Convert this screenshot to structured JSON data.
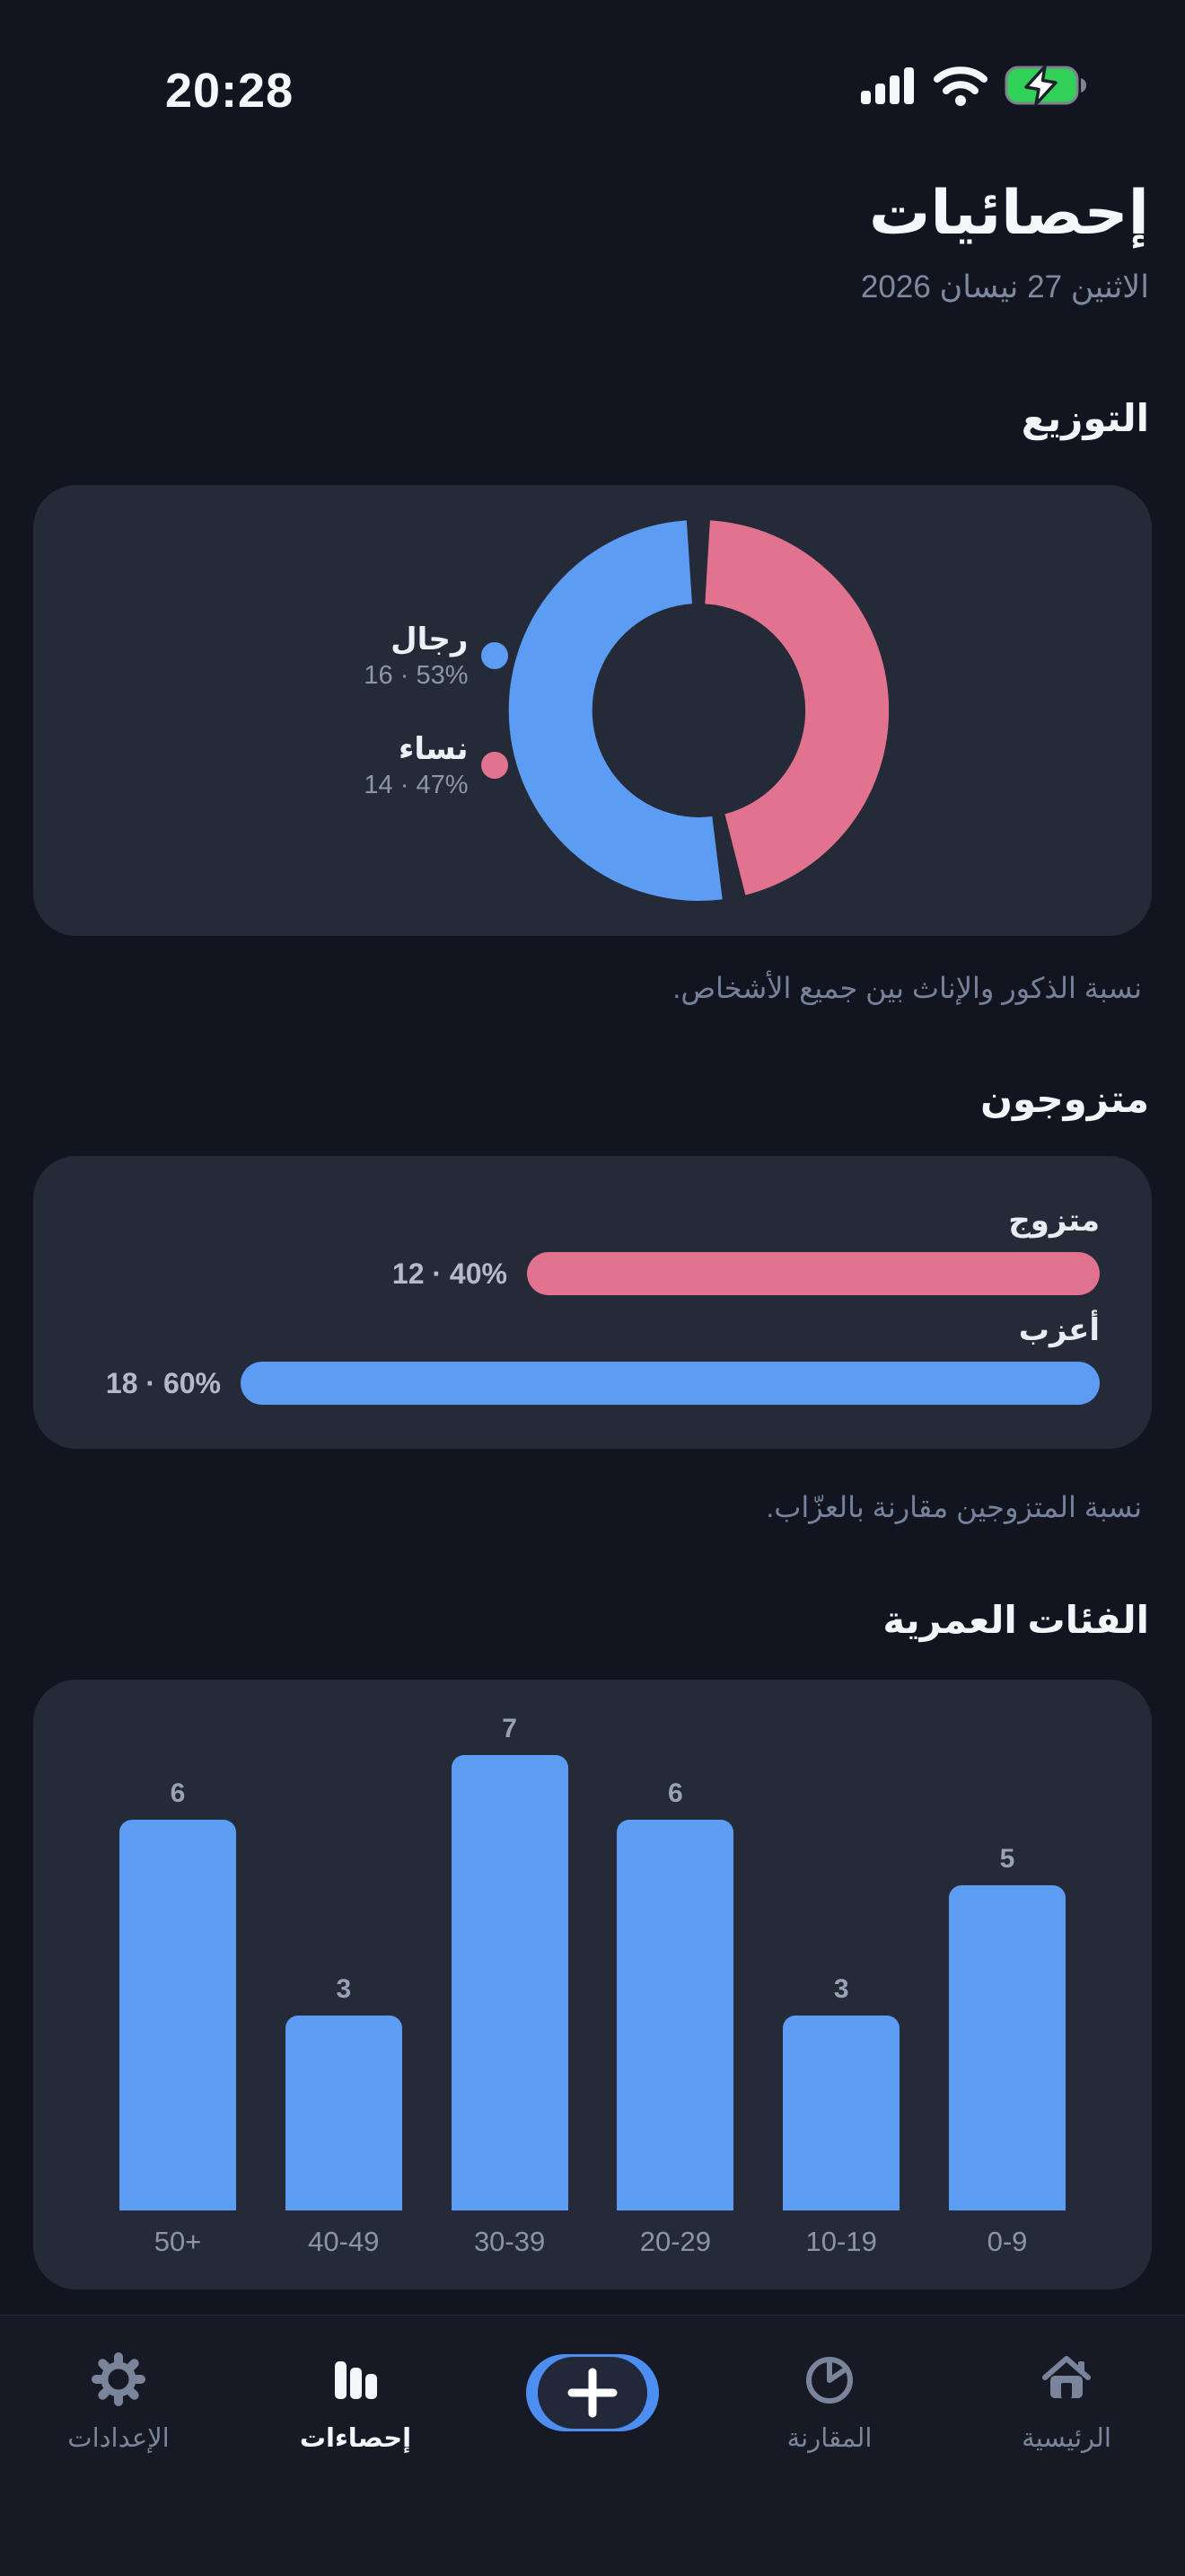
{
  "status_bar": {
    "time": "20:28",
    "icons": [
      "cellular-signal-icon",
      "wifi-icon",
      "battery-charging-icon"
    ],
    "battery_color": "#31D158"
  },
  "header": {
    "title": "إحصائيات",
    "date": "الاثنين 27 نيسان 2026"
  },
  "colors": {
    "blue": "#5D9CF3",
    "pink": "#E2738F",
    "card_bg": "#242A37",
    "page_bg": "#121520",
    "tabbar_bg": "#171A25"
  },
  "sections": {
    "distribution": {
      "title": "التوزيع",
      "caption": "نسبة الذكور والإناث بين جميع الأشخاص.",
      "legend": [
        {
          "label": "رجال",
          "value_text": "16 · 53%",
          "value": 16,
          "percent": 53,
          "color": "#5D9CF3"
        },
        {
          "label": "نساء",
          "value_text": "14 · 47%",
          "value": 14,
          "percent": 47,
          "color": "#E2738F"
        }
      ]
    },
    "marital": {
      "title": "متزوجون",
      "caption": "نسبة المتزوجين مقارنة بالعزّاب.",
      "bars": [
        {
          "label": "متزوج",
          "value_text": "12 · 40%",
          "value": 12,
          "percent": 40,
          "color": "#E2738F"
        },
        {
          "label": "أعزب",
          "value_text": "18 · 60%",
          "value": 18,
          "percent": 60,
          "color": "#5D9CF3"
        }
      ],
      "max_value": 18
    },
    "age": {
      "title": "الفئات العمرية",
      "categories": [
        "50+",
        "40-49",
        "30-39",
        "20-29",
        "10-19",
        "0-9"
      ],
      "values": [
        6,
        3,
        7,
        6,
        3,
        5
      ],
      "bar_color": "#5D9CF3",
      "max_value": 7
    }
  },
  "chart_data": [
    {
      "type": "pie",
      "title": "التوزيع",
      "categories": [
        "رجال",
        "نساء"
      ],
      "values": [
        53,
        47
      ],
      "counts": [
        16,
        14
      ],
      "colors": [
        "#5D9CF3",
        "#E2738F"
      ],
      "legend_position": "left"
    },
    {
      "type": "bar",
      "title": "متزوجون",
      "orientation": "horizontal",
      "categories": [
        "متزوج",
        "أعزب"
      ],
      "values": [
        12,
        18
      ],
      "percents": [
        40,
        60
      ],
      "colors": [
        "#E2738F",
        "#5D9CF3"
      ],
      "xlim": [
        0,
        18
      ]
    },
    {
      "type": "bar",
      "title": "الفئات العمرية",
      "orientation": "vertical",
      "categories": [
        "50+",
        "40-49",
        "30-39",
        "20-29",
        "10-19",
        "0-9"
      ],
      "values": [
        6,
        3,
        7,
        6,
        3,
        5
      ],
      "ylim": [
        0,
        7
      ],
      "grid": false
    }
  ],
  "tab_bar": {
    "items": [
      {
        "label": "الرئيسية",
        "icon": "home-icon",
        "active": false
      },
      {
        "label": "المقارنة",
        "icon": "pie-chart-icon",
        "active": false
      },
      {
        "label": "",
        "icon": "plus-icon",
        "active": false,
        "is_add_button": true
      },
      {
        "label": "إحصاءات",
        "icon": "bar-chart-icon",
        "active": true
      },
      {
        "label": "الإعدادات",
        "icon": "gear-icon",
        "active": false
      }
    ]
  }
}
